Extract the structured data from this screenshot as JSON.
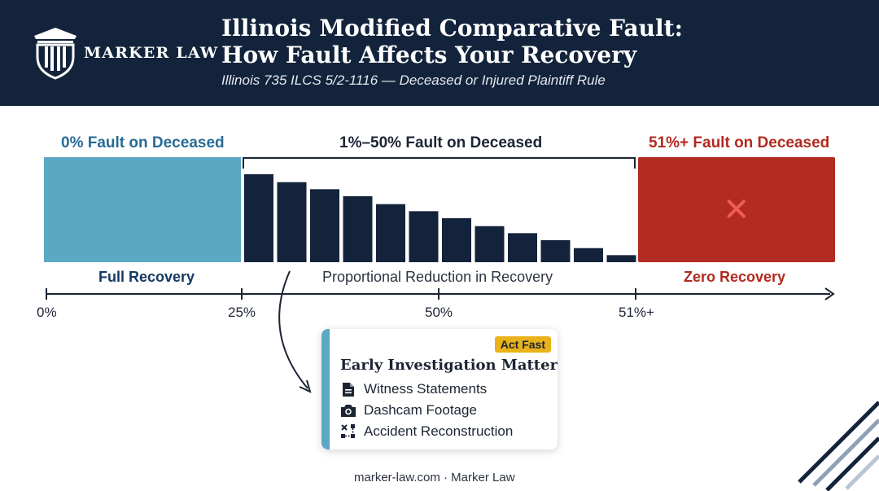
{
  "header": {
    "brand": "MARKER LAW",
    "title_line1": "Illinois Modified Comparative Fault:",
    "title_line2": "How Fault Affects Your Recovery",
    "subtitle": "Illinois 735 ILCS 5/2-1116 — Deceased or Injured Plaintiff Rule"
  },
  "sections": {
    "left_label": "0% Fault on Deceased",
    "mid_label": "1%–50% Fault on Deceased",
    "right_label": "51%+ Fault on Deceased",
    "left_outcome": "Full Recovery",
    "mid_outcome": "Proportional Reduction in Recovery",
    "right_outcome": "Zero Recovery",
    "zero_icon": "x-icon"
  },
  "axis": {
    "ticks": [
      "0%",
      "25%",
      "50%",
      "51%+"
    ]
  },
  "chart_data": {
    "type": "bar",
    "values": [
      100,
      91,
      83,
      75,
      66,
      58,
      50,
      41,
      33,
      25,
      16,
      8
    ]
  },
  "callout": {
    "badge": "Act Fast",
    "title": "Early Investigation Matters",
    "items": [
      {
        "label": "Witness Statements",
        "icon": "document-icon"
      },
      {
        "label": "Dashcam Footage",
        "icon": "camera-icon"
      },
      {
        "label": "Accident Reconstruction",
        "icon": "diagram-icon"
      }
    ]
  },
  "footer": "marker-law.com · Marker Law",
  "colors": {
    "navy": "#13233b",
    "teal": "#5ba8c4",
    "red": "#b32b21",
    "bar": "#13233b",
    "badge": "#e9b21a"
  }
}
